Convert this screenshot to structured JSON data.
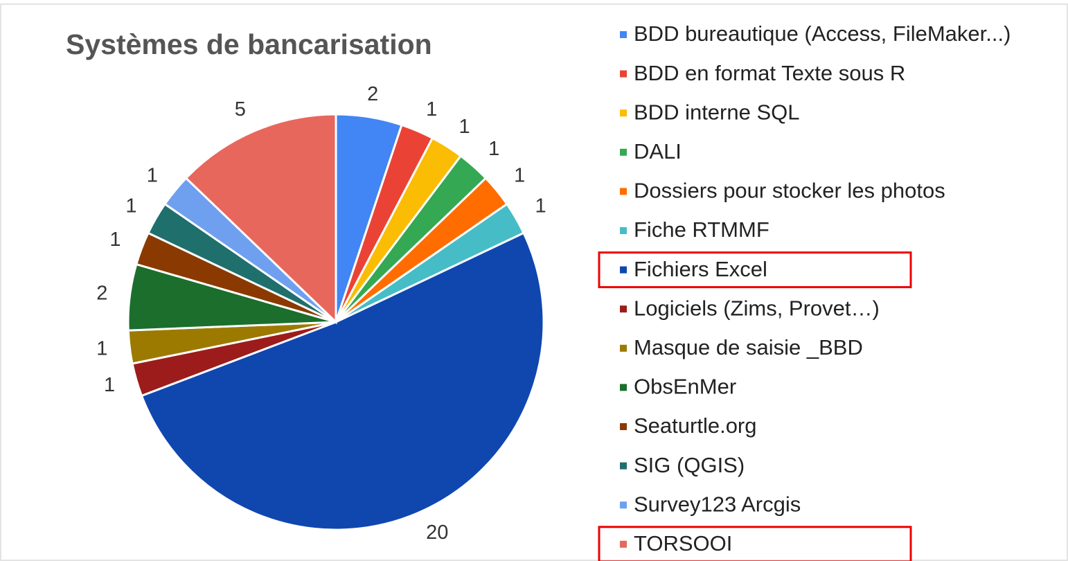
{
  "chart_data": {
    "type": "pie",
    "title": "Systèmes de bancarisation",
    "categories": [
      "BDD bureautique (Access, FileMaker...)",
      "BDD en format Texte sous R",
      "BDD interne SQL",
      "DALI",
      "Dossiers pour stocker les photos",
      "Fiche RTMMF",
      "Fichiers Excel",
      "Logiciels (Zims,  Provet…)",
      "Masque de saisie _BBD",
      "ObsEnMer",
      "Seaturtle.org",
      "SIG (QGIS)",
      "Survey123 Arcgis",
      "TORSOOI"
    ],
    "values": [
      2,
      1,
      1,
      1,
      1,
      1,
      20,
      1,
      1,
      2,
      1,
      1,
      1,
      5
    ],
    "colors": [
      "#4285f4",
      "#ea4335",
      "#fbbc04",
      "#34a853",
      "#ff6d01",
      "#46bdc6",
      "#0f47af",
      "#9c1c1c",
      "#9c7a00",
      "#1b6e2c",
      "#8a3a00",
      "#1f6f6d",
      "#6fa0ef",
      "#e8675c"
    ],
    "highlighted": [
      6,
      13
    ],
    "legend": "right"
  }
}
